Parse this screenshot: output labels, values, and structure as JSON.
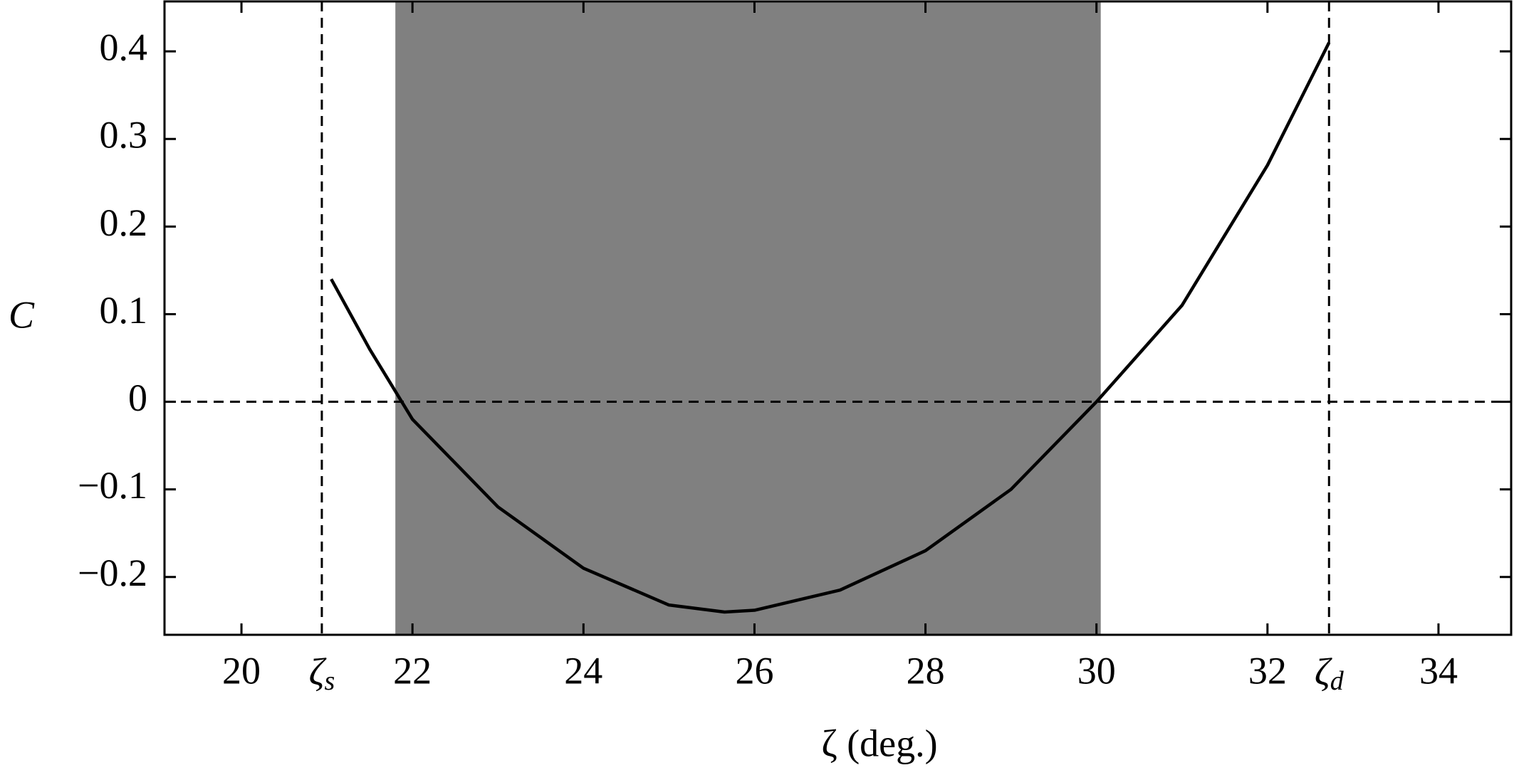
{
  "chart_data": {
    "type": "line",
    "xlabel": "ζ  (deg.)",
    "ylabel": "C",
    "x": [
      21.05,
      21.5,
      22,
      23,
      24,
      25,
      25.65,
      26,
      27,
      28,
      29,
      30,
      31,
      32,
      32.72
    ],
    "series": [
      {
        "color": "#000000",
        "values": [
          0.14,
          0.06,
          -0.02,
          -0.12,
          -0.19,
          -0.232,
          -0.24,
          -0.238,
          -0.215,
          -0.17,
          -0.1,
          0.0,
          0.11,
          0.27,
          0.41
        ]
      }
    ],
    "xlim": [
      19.1,
      34.85
    ],
    "ylim": [
      -0.266,
      0.457
    ],
    "xticks": [
      20,
      22,
      24,
      26,
      28,
      30,
      32,
      34
    ],
    "yticks": [
      {
        "value": -0.2,
        "label": "−0.2"
      },
      {
        "value": -0.1,
        "label": "−0.1"
      },
      0,
      0.1,
      0.2,
      0.3,
      0.4
    ],
    "shaded_region": {
      "x": [
        21.8,
        30.05
      ],
      "color": "#808080"
    },
    "hline": 0,
    "vlines": [
      {
        "x": 20.94,
        "label": "ζ",
        "subscript": "s"
      },
      {
        "x": 32.72,
        "label": "ζ",
        "subscript": "d"
      }
    ]
  }
}
